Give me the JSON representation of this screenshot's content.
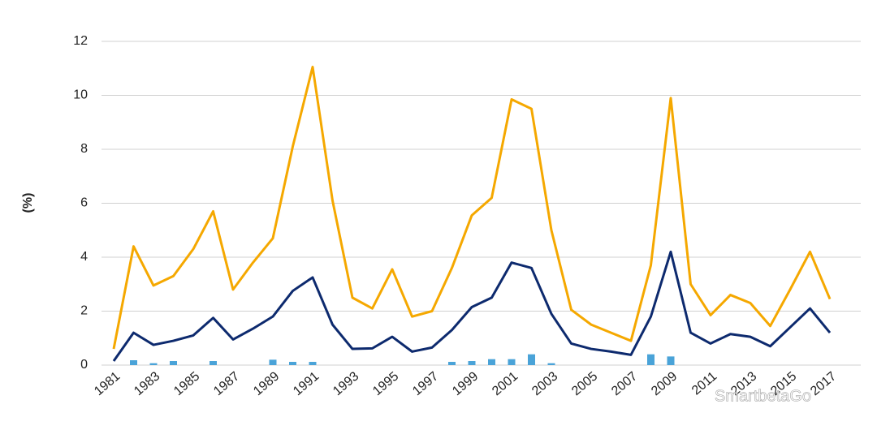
{
  "chart_data": {
    "type": "line",
    "y_label": "(%)",
    "categories": [
      "1981",
      null,
      "1983",
      null,
      "1985",
      null,
      "1987",
      null,
      "1989",
      null,
      "1991",
      null,
      "1993",
      null,
      "1995",
      null,
      "1997",
      null,
      "1999",
      null,
      "2001",
      null,
      "2003",
      null,
      "2005",
      null,
      "2007",
      null,
      "2009",
      null,
      "2011",
      null,
      "2013",
      null,
      "2015",
      null,
      "2017"
    ],
    "series": [
      {
        "type": "bar",
        "color": "#4aa3d8",
        "values": [
          0,
          0.18,
          0.07,
          0.15,
          0,
          0.15,
          0,
          0,
          0.2,
          0.12,
          0.12,
          0,
          0,
          0,
          0,
          0,
          0,
          0.12,
          0.15,
          0.22,
          0.22,
          0.4,
          0.07,
          0,
          0,
          0,
          0,
          0.4,
          0.32,
          0,
          0,
          0,
          0,
          0,
          0,
          0,
          0
        ]
      },
      {
        "type": "line",
        "color": "#f5a800",
        "values": [
          0.6,
          4.4,
          2.95,
          3.3,
          4.3,
          5.7,
          2.8,
          3.8,
          4.7,
          8.1,
          11.05,
          6.1,
          2.5,
          2.1,
          3.55,
          1.8,
          2.0,
          3.6,
          5.55,
          6.2,
          9.85,
          9.5,
          5.0,
          2.05,
          1.5,
          1.2,
          0.9,
          3.7,
          9.9,
          3.0,
          1.85,
          2.6,
          2.3,
          1.45,
          2.8,
          4.2,
          2.45
        ]
      },
      {
        "type": "line",
        "color": "#0d2a6e",
        "values": [
          0.15,
          1.2,
          0.75,
          0.9,
          1.1,
          1.75,
          0.95,
          1.35,
          1.8,
          2.75,
          3.25,
          1.5,
          0.6,
          0.62,
          1.05,
          0.5,
          0.65,
          1.3,
          2.15,
          2.5,
          3.8,
          3.6,
          1.9,
          0.8,
          0.6,
          0.5,
          0.38,
          1.8,
          4.2,
          1.2,
          0.8,
          1.15,
          1.05,
          0.7,
          1.4,
          2.1,
          1.2
        ]
      }
    ],
    "ylim": [
      0,
      12
    ],
    "yticks": [
      0,
      2,
      4,
      6,
      8,
      10,
      12
    ],
    "grid": true,
    "watermark": "SmartbetaGo"
  }
}
